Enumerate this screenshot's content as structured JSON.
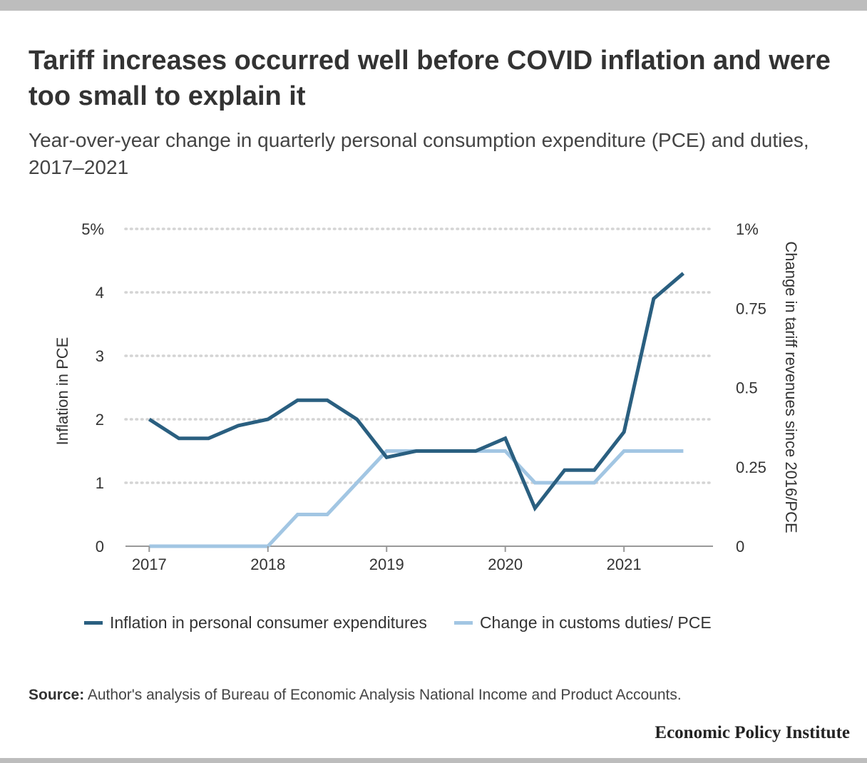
{
  "title": "Tariff increases occurred well before COVID inflation and were too small to explain it",
  "subtitle": "Year-over-year change in quarterly personal consumption expenditure (PCE) and duties, 2017–2021",
  "source_label": "Source:",
  "source_text": "Author's analysis of Bureau of Economic Analysis National Income and Product Accounts.",
  "brand": "Economic Policy Institute",
  "colors": {
    "series_dark": "#2a5f80",
    "series_light": "#a2c6e3",
    "grid": "#d4d4d4",
    "axis": "#999999",
    "text": "#333333"
  },
  "chart_data": {
    "type": "line",
    "x": [
      2017.0,
      2017.25,
      2017.5,
      2017.75,
      2018.0,
      2018.25,
      2018.5,
      2018.75,
      2019.0,
      2019.25,
      2019.5,
      2019.75,
      2020.0,
      2020.25,
      2020.5,
      2020.75,
      2021.0,
      2021.25,
      2021.5
    ],
    "xlim": [
      2016.8,
      2021.75
    ],
    "x_ticks": [
      2017,
      2018,
      2019,
      2020,
      2021
    ],
    "x_tick_labels": [
      "2017",
      "2018",
      "2019",
      "2020",
      "2021"
    ],
    "ylabel": "Inflation in PCE",
    "ylim": [
      0,
      5
    ],
    "y_ticks": [
      0,
      1,
      2,
      3,
      4,
      5
    ],
    "y_tick_labels": [
      "0",
      "1",
      "2",
      "3",
      "4",
      "5%"
    ],
    "y2label": "Change in tariff revenues since 2016/PCE",
    "y2lim": [
      0,
      1
    ],
    "y2_ticks": [
      0,
      0.25,
      0.5,
      0.75,
      1
    ],
    "y2_tick_labels": [
      "0",
      "0.25",
      "0.5",
      "0.75",
      "1%"
    ],
    "grid": "horizontal dotted",
    "legend_position": "bottom",
    "series": [
      {
        "name": "Inflation in personal consumer expenditures",
        "axis": "left",
        "color": "#2a5f80",
        "values": [
          2.0,
          1.7,
          1.7,
          1.9,
          2.0,
          2.3,
          2.3,
          2.0,
          1.4,
          1.5,
          1.5,
          1.5,
          1.7,
          0.6,
          1.2,
          1.2,
          1.8,
          3.9,
          4.3
        ]
      },
      {
        "name": "Change in customs duties/ PCE",
        "axis": "right",
        "color": "#a2c6e3",
        "values": [
          0.0,
          0.0,
          0.0,
          0.0,
          0.0,
          0.1,
          0.1,
          0.2,
          0.3,
          0.3,
          0.3,
          0.3,
          0.3,
          0.2,
          0.2,
          0.2,
          0.3,
          0.3,
          0.3
        ]
      }
    ]
  }
}
